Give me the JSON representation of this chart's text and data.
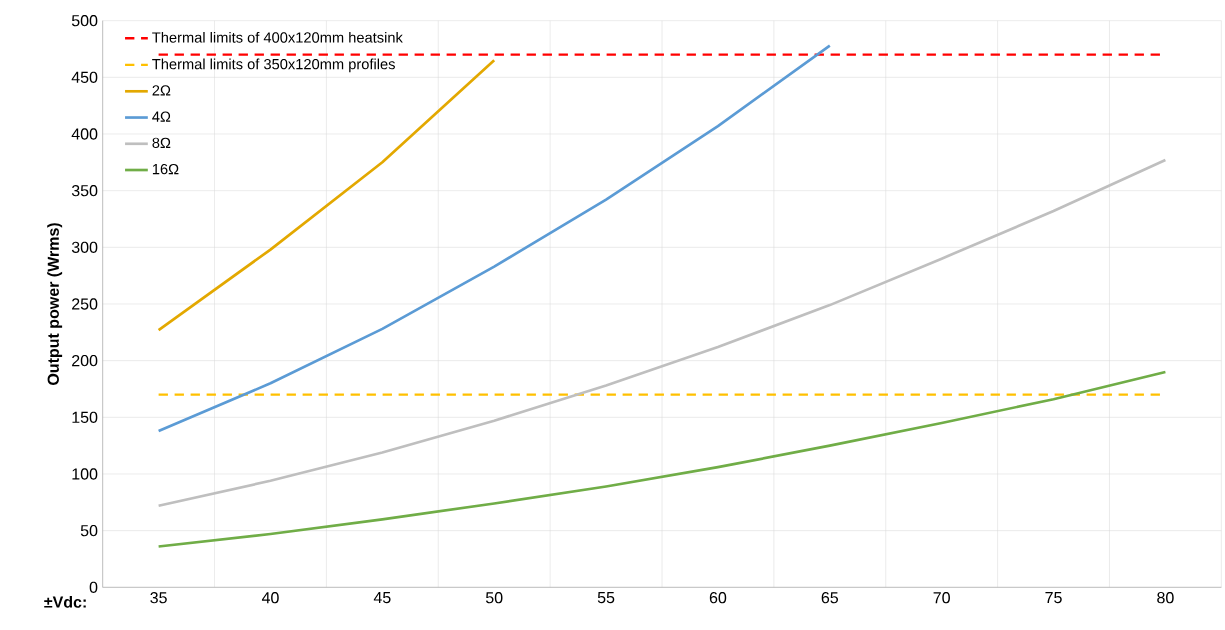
{
  "chart_data": {
    "type": "line",
    "ylabel": "Output power (Wrms)",
    "xlabel": "±Vdc:",
    "categories": [
      "35",
      "40",
      "45",
      "50",
      "55",
      "60",
      "65",
      "70",
      "75",
      "80"
    ],
    "ylim": [
      0,
      500
    ],
    "yticks": [
      0,
      50,
      100,
      150,
      200,
      250,
      300,
      350,
      400,
      450,
      500
    ],
    "grid": true,
    "legend": "top left",
    "marker": "none",
    "line_style": "solid",
    "ref_lines": [
      {
        "axis": "y",
        "value": 470,
        "label": "Thermal limits of 400x120mm heatsink",
        "color": "#ff0000",
        "line_style": "dashed"
      },
      {
        "axis": "y",
        "value": 170,
        "label": "Thermal limits of 350x120mm profiles",
        "color": "#ffc000",
        "line_style": "dashed"
      }
    ],
    "series": [
      {
        "name": "2Ω",
        "color": "#e3a800",
        "values": [
          227,
          298,
          375,
          465,
          null,
          null,
          null,
          null,
          null,
          null
        ]
      },
      {
        "name": "4Ω",
        "color": "#5b9bd5",
        "values": [
          138,
          180,
          228,
          283,
          342,
          407,
          478,
          null,
          null,
          null
        ]
      },
      {
        "name": "8Ω",
        "color": "#bfbfbf",
        "values": [
          72,
          94,
          119,
          147,
          178,
          212,
          249,
          290,
          332,
          377
        ]
      },
      {
        "name": "16Ω",
        "color": "#70ad47",
        "values": [
          36,
          47,
          60,
          74,
          89,
          106,
          125,
          145,
          166,
          190
        ]
      }
    ]
  }
}
